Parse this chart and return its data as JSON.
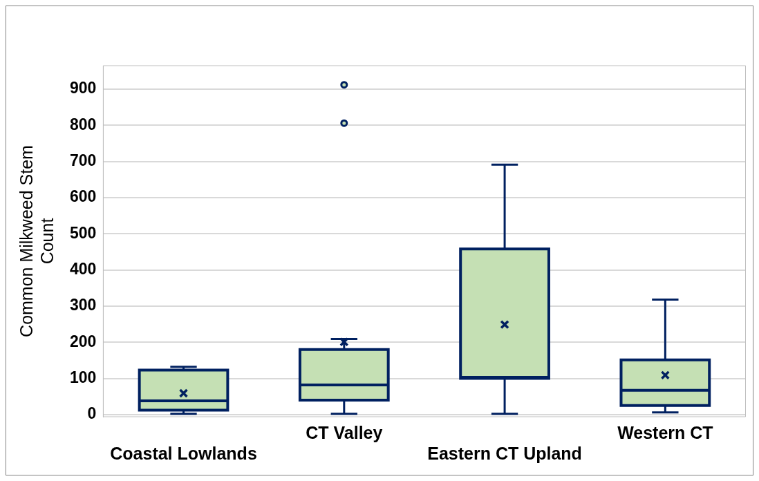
{
  "chart_data": {
    "type": "box",
    "ylabel": "Common Milkweed Stem Count",
    "categories": [
      "Coastal Lowlands",
      "CT Valley",
      "Eastern CT Upland",
      "Western CT"
    ],
    "series": [
      {
        "color": "#c5e0b4",
        "boxes": [
          {
            "low": 2,
            "q1": 12,
            "median": 38,
            "q3": 123,
            "high": 132,
            "mean": 59
          },
          {
            "low": 2,
            "q1": 40,
            "median": 82,
            "q3": 180,
            "high": 209,
            "mean": 201,
            "outliers": [
              806,
              912
            ]
          },
          {
            "low": 2,
            "q1": 100,
            "median": 103,
            "q3": 458,
            "high": 691,
            "mean": 249
          },
          {
            "low": 6,
            "q1": 25,
            "median": 67,
            "q3": 151,
            "high": 318,
            "mean": 109
          }
        ]
      }
    ],
    "ylim": [
      -6,
      965
    ],
    "yticks": [
      0,
      100,
      200,
      300,
      400,
      500,
      600,
      700,
      800,
      900
    ],
    "grid": "y",
    "legend": false
  }
}
